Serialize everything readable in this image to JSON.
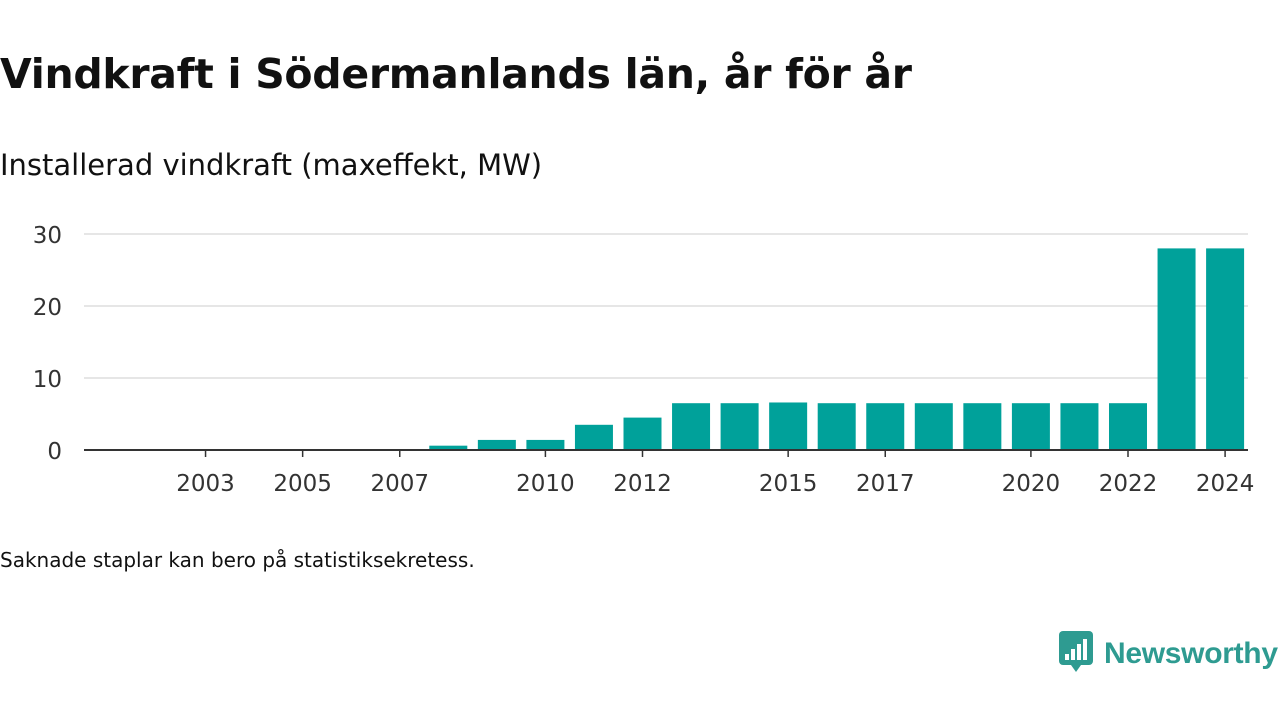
{
  "header": {
    "title": "Vindkraft i Södermanlands län, år för år",
    "subtitle": "Installerad vindkraft (maxeffekt, MW)"
  },
  "footnote": "Saknade staplar kan bero på statistiksekretess.",
  "brand": {
    "name": "Newsworthy",
    "icon": "newsworthy-logo-icon",
    "color": "#2e9b91"
  },
  "colors": {
    "bar": "#00a19a",
    "grid": "#dddddd",
    "axis": "#333333"
  },
  "chart_data": {
    "type": "bar",
    "title": "Vindkraft i Södermanlands län, år för år",
    "subtitle": "Installerad vindkraft (maxeffekt, MW)",
    "xlabel": "",
    "ylabel": "",
    "ylim": [
      0,
      30
    ],
    "yticks": [
      0,
      10,
      20,
      30
    ],
    "grid": true,
    "categories": [
      "2002",
      "2003",
      "2004",
      "2005",
      "2006",
      "2007",
      "2008",
      "2009",
      "2010",
      "2011",
      "2012",
      "2013",
      "2014",
      "2015",
      "2016",
      "2017",
      "2018",
      "2019",
      "2020",
      "2021",
      "2022",
      "2023",
      "2024"
    ],
    "xtick_labels": [
      "2003",
      "2005",
      "2007",
      "2010",
      "2012",
      "2015",
      "2017",
      "2020",
      "2022",
      "2024"
    ],
    "values": [
      0,
      0,
      0,
      0,
      0,
      0,
      0.6,
      1.4,
      1.4,
      3.5,
      4.5,
      6.5,
      6.5,
      6.6,
      6.5,
      6.5,
      6.5,
      6.5,
      6.5,
      6.5,
      6.5,
      28,
      28
    ]
  }
}
